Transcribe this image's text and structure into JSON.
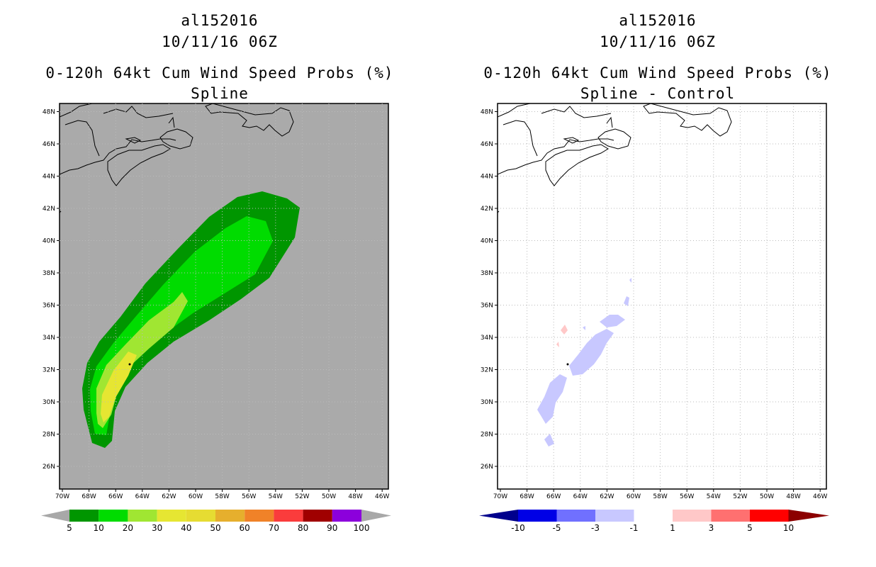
{
  "left_panel": {
    "storm_id": "al152016",
    "datetime": "10/11/16 06Z",
    "title": "0-120h 64kt Cum Wind Speed Probs (%)",
    "subtitle": "Spline",
    "background_color": "#aaaaaa",
    "colorbar": {
      "labels": [
        "5",
        "10",
        "20",
        "30",
        "40",
        "50",
        "60",
        "70",
        "80",
        "90",
        "100"
      ],
      "colors": [
        "#009600",
        "#00dc00",
        "#a0e632",
        "#e6e632",
        "#e6dc32",
        "#e6af2d",
        "#f08228",
        "#fa3c3c",
        "#a00000",
        "#8c00dc"
      ],
      "end_color": "#a8a8a8"
    }
  },
  "right_panel": {
    "storm_id": "al152016",
    "datetime": "10/11/16 06Z",
    "title": "0-120h 64kt Cum Wind Speed Probs (%)",
    "subtitle": "Spline - Control",
    "background_color": "#ffffff",
    "colorbar": {
      "labels": [
        "-10",
        "-5",
        "-3",
        "-1",
        "1",
        "3",
        "5",
        "10"
      ],
      "colors": [
        "#0000e6",
        "#7070ff",
        "#c8c8ff",
        "#ffffff",
        "#ffc8c8",
        "#ff7070",
        "#ff0000"
      ],
      "end_low": "#00008c",
      "end_high": "#8c0000"
    }
  },
  "axes": {
    "lon_labels": [
      "70W",
      "68W",
      "66W",
      "64W",
      "62W",
      "60W",
      "58W",
      "56W",
      "54W",
      "52W",
      "50W",
      "48W",
      "46W"
    ],
    "lat_labels": [
      "26N",
      "28N",
      "30N",
      "32N",
      "34N",
      "36N",
      "38N",
      "40N",
      "42N",
      "44N",
      "46N",
      "48N"
    ]
  }
}
